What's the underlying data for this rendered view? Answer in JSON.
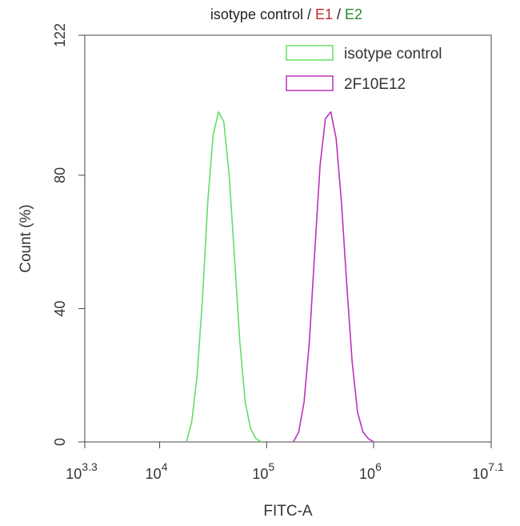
{
  "chart_data": {
    "type": "line",
    "title_parts": [
      {
        "text": "isotype control",
        "color": "#222222"
      },
      {
        "text": " / ",
        "color": "#222222"
      },
      {
        "text": "E1",
        "color": "#c0282d"
      },
      {
        "text": " / ",
        "color": "#222222"
      },
      {
        "text": "E2",
        "color": "#2a8a2a"
      }
    ],
    "xlabel": "FITC-A",
    "ylabel": "Count (%)",
    "x_scale": "log",
    "xlim": [
      3.3,
      7.1
    ],
    "ylim": [
      0,
      122
    ],
    "x_ticks": [
      {
        "exp": 3.3,
        "base": "10",
        "sup": "3.3"
      },
      {
        "exp": 4,
        "base": "10",
        "sup": "4"
      },
      {
        "exp": 5,
        "base": "10",
        "sup": "5"
      },
      {
        "exp": 6,
        "base": "10",
        "sup": "6"
      },
      {
        "exp": 7.1,
        "base": "10",
        "sup": "7.1"
      }
    ],
    "y_ticks": [
      0,
      40,
      80,
      122
    ],
    "legend_position": "top-right",
    "series": [
      {
        "name": "isotype control",
        "color": "#66dd66",
        "x_log10": [
          4.25,
          4.3,
          4.35,
          4.4,
          4.45,
          4.5,
          4.55,
          4.6,
          4.65,
          4.7,
          4.75,
          4.8,
          4.85,
          4.9,
          4.95
        ],
        "y": [
          0,
          6,
          20,
          43,
          72,
          92,
          99,
          96,
          80,
          55,
          30,
          12,
          4,
          1,
          0
        ]
      },
      {
        "name": "2F10E12",
        "color": "#bb33bb",
        "x_log10": [
          5.25,
          5.3,
          5.35,
          5.4,
          5.45,
          5.5,
          5.55,
          5.6,
          5.65,
          5.7,
          5.75,
          5.8,
          5.85,
          5.9,
          5.95,
          6.0
        ],
        "y": [
          0,
          3,
          12,
          30,
          57,
          83,
          97,
          99,
          91,
          72,
          47,
          24,
          9,
          3,
          1,
          0
        ]
      }
    ]
  }
}
